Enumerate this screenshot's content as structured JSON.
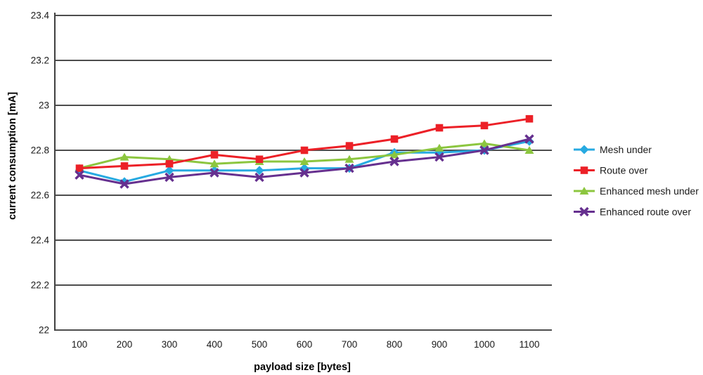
{
  "chart_data": {
    "type": "line",
    "title": "",
    "xlabel": "payload size [bytes]",
    "ylabel": "current consumption [mA]",
    "xlim": [
      50,
      1150
    ],
    "ylim": [
      22,
      23.4
    ],
    "grid": "horizontal",
    "legend_position": "right",
    "x": [
      100,
      200,
      300,
      400,
      500,
      600,
      700,
      800,
      900,
      1000,
      1100
    ],
    "xtick_labels": [
      "100",
      "200",
      "300",
      "400",
      "500",
      "600",
      "700",
      "800",
      "900",
      "1000",
      "1100"
    ],
    "yticks": [
      22,
      22.2,
      22.4,
      22.6,
      22.8,
      23,
      23.2,
      23.4
    ],
    "ytick_labels": [
      "22",
      "22.2",
      "22.4",
      "22.6",
      "22.8",
      "23",
      "23.2",
      "23.4"
    ],
    "series": [
      {
        "name": "Mesh under",
        "color": "#27AAE1",
        "marker": "diamond",
        "values": [
          22.71,
          22.66,
          22.71,
          22.71,
          22.71,
          22.72,
          22.72,
          22.79,
          22.79,
          22.8,
          22.84
        ]
      },
      {
        "name": "Route over",
        "color": "#EC2027",
        "marker": "square",
        "values": [
          22.72,
          22.73,
          22.74,
          22.78,
          22.76,
          22.8,
          22.82,
          22.85,
          22.9,
          22.91,
          22.94
        ]
      },
      {
        "name": "Enhanced mesh under",
        "color": "#8CC63F",
        "marker": "triangle",
        "values": [
          22.72,
          22.77,
          22.76,
          22.74,
          22.75,
          22.75,
          22.76,
          22.78,
          22.81,
          22.83,
          22.8
        ]
      },
      {
        "name": "Enhanced route over",
        "color": "#66308F",
        "marker": "x",
        "values": [
          22.69,
          22.65,
          22.68,
          22.7,
          22.68,
          22.7,
          22.72,
          22.75,
          22.77,
          22.8,
          22.85
        ]
      }
    ],
    "colors": {
      "gridline": "#4D4D4D",
      "axis": "#404040",
      "text": "#1a1a1a"
    }
  }
}
